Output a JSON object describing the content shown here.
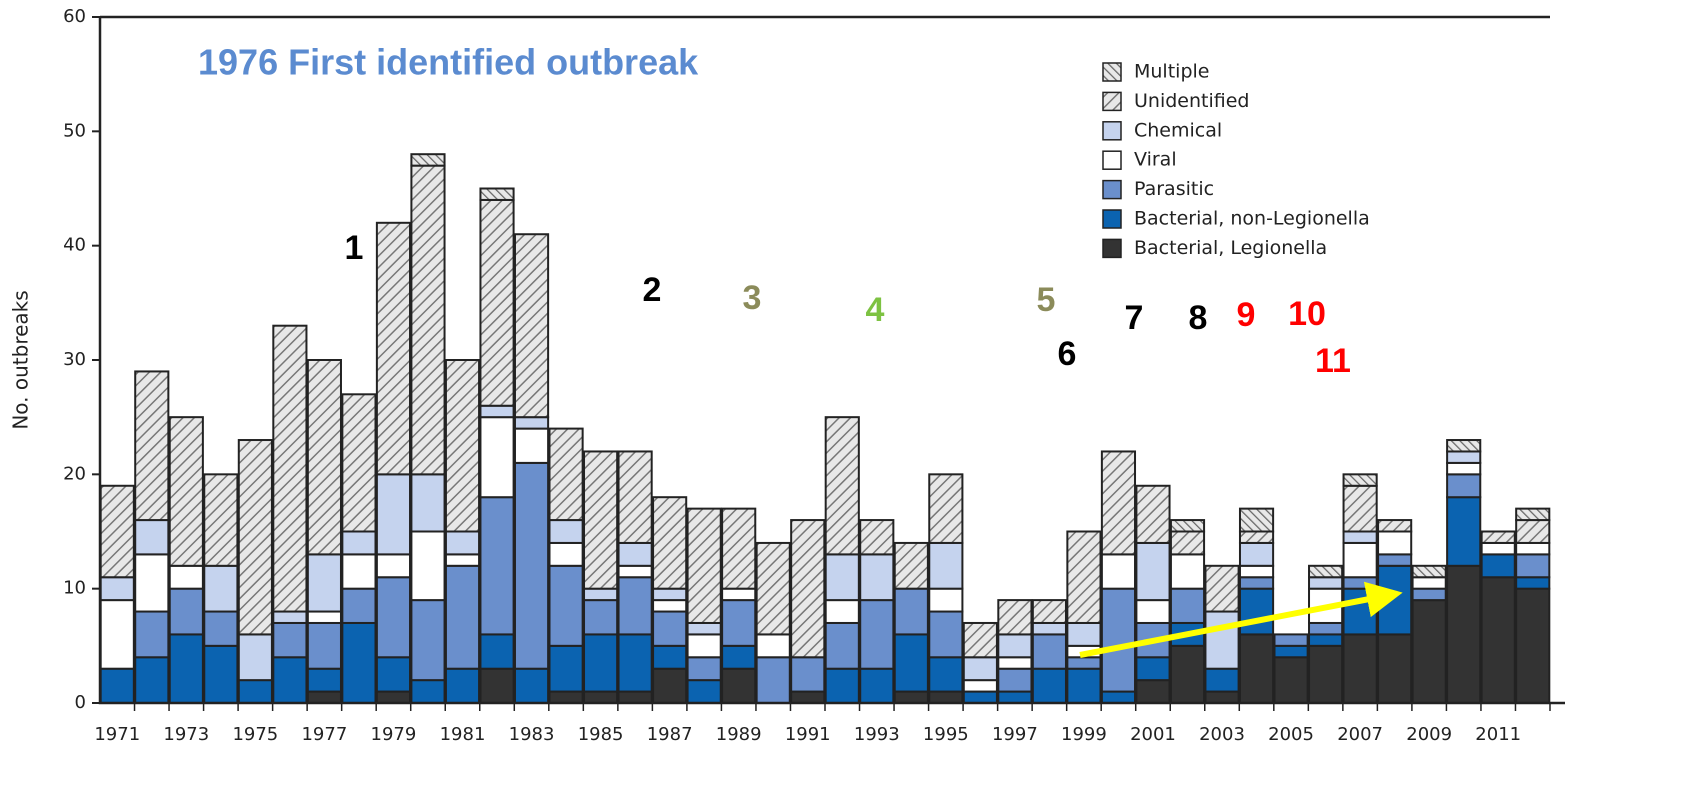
{
  "chart_data": {
    "type": "stacked_bar",
    "title": "1976 First identified outbreak",
    "y_label": "No. outbreaks",
    "categories": [
      "1971",
      null,
      "1973",
      null,
      "1975",
      null,
      "1977",
      null,
      "1979",
      null,
      "1981",
      null,
      "1983",
      null,
      "1985",
      null,
      "1987",
      null,
      "1989",
      null,
      "1991",
      null,
      "1993",
      null,
      "1995",
      null,
      "1997",
      null,
      "1999",
      null,
      "2001",
      null,
      "2003",
      null,
      "2005",
      null,
      "2007",
      null,
      "2009",
      null,
      "2011",
      null
    ],
    "series": [
      {
        "name": "Bacterial, Legionella",
        "color": "#333333",
        "values": [
          0,
          0,
          0,
          0,
          0,
          0,
          1,
          0,
          1,
          0,
          0,
          3,
          0,
          1,
          1,
          1,
          3,
          0,
          3,
          0,
          1,
          0,
          0,
          1,
          1,
          0,
          0,
          0,
          0,
          0,
          2,
          5,
          1,
          6,
          4,
          5,
          6,
          6,
          9,
          12,
          11,
          10
        ]
      },
      {
        "name": "Bacterial, non-Legionella",
        "color": "#0b63b0",
        "values": [
          3,
          4,
          6,
          5,
          2,
          4,
          2,
          7,
          3,
          2,
          3,
          3,
          3,
          4,
          5,
          5,
          2,
          2,
          2,
          0,
          0,
          3,
          3,
          5,
          3,
          1,
          1,
          3,
          3,
          1,
          2,
          2,
          2,
          4,
          1,
          1,
          4,
          6,
          0,
          6,
          2,
          1
        ]
      },
      {
        "name": "Parasitic",
        "color": "#6a8fcc",
        "values": [
          0,
          4,
          4,
          3,
          0,
          3,
          4,
          3,
          7,
          7,
          9,
          12,
          18,
          7,
          3,
          5,
          3,
          2,
          4,
          4,
          3,
          4,
          6,
          4,
          4,
          0,
          2,
          3,
          1,
          9,
          3,
          3,
          0,
          1,
          1,
          1,
          1,
          1,
          1,
          2,
          0,
          2
        ]
      },
      {
        "name": "Viral",
        "color": "#ffffff",
        "values": [
          6,
          5,
          2,
          0,
          0,
          0,
          1,
          3,
          2,
          6,
          1,
          7,
          3,
          2,
          0,
          1,
          1,
          2,
          1,
          2,
          0,
          2,
          0,
          0,
          2,
          1,
          1,
          0,
          1,
          3,
          2,
          3,
          0,
          1,
          0,
          3,
          3,
          2,
          1,
          1,
          1,
          1
        ]
      },
      {
        "name": "Chemical",
        "color": "#c5d3ee",
        "values": [
          2,
          3,
          0,
          4,
          4,
          1,
          5,
          2,
          7,
          5,
          2,
          1,
          1,
          2,
          1,
          2,
          1,
          1,
          0,
          0,
          0,
          4,
          4,
          0,
          4,
          2,
          2,
          1,
          2,
          0,
          5,
          0,
          5,
          2,
          0,
          1,
          1,
          0,
          0,
          1,
          0,
          0
        ]
      },
      {
        "name": "Unidentified",
        "color": "#cccccc",
        "pattern": "slash",
        "values": [
          8,
          13,
          13,
          8,
          17,
          25,
          17,
          12,
          22,
          27,
          15,
          18,
          16,
          8,
          12,
          8,
          8,
          10,
          7,
          8,
          12,
          12,
          3,
          4,
          6,
          3,
          3,
          2,
          8,
          9,
          5,
          2,
          4,
          1,
          0,
          0,
          4,
          1,
          0,
          0,
          1,
          2
        ]
      },
      {
        "name": "Multiple",
        "color": "#cccccc",
        "pattern": "backslash",
        "values": [
          0,
          0,
          0,
          0,
          0,
          0,
          0,
          0,
          0,
          1,
          0,
          1,
          0,
          0,
          0,
          0,
          0,
          0,
          0,
          0,
          0,
          0,
          0,
          0,
          0,
          0,
          0,
          0,
          0,
          0,
          0,
          1,
          0,
          2,
          0,
          1,
          1,
          0,
          1,
          1,
          0,
          1
        ]
      }
    ],
    "ylim": [
      0,
      60
    ],
    "yticks": [
      0,
      10,
      20,
      30,
      40,
      50,
      60
    ],
    "annotations": [
      {
        "text": "1",
        "color": "#000000"
      },
      {
        "text": "2",
        "color": "#000000"
      },
      {
        "text": "3",
        "color": "#8b8b5a"
      },
      {
        "text": "4",
        "color": "#7dc242"
      },
      {
        "text": "5",
        "color": "#8b8b5a"
      },
      {
        "text": "6",
        "color": "#000000"
      },
      {
        "text": "7",
        "color": "#000000"
      },
      {
        "text": "8",
        "color": "#000000"
      },
      {
        "text": "9",
        "color": "#ff0000"
      },
      {
        "text": "10",
        "color": "#ff0000"
      },
      {
        "text": "11",
        "color": "#ff0000"
      }
    ]
  }
}
